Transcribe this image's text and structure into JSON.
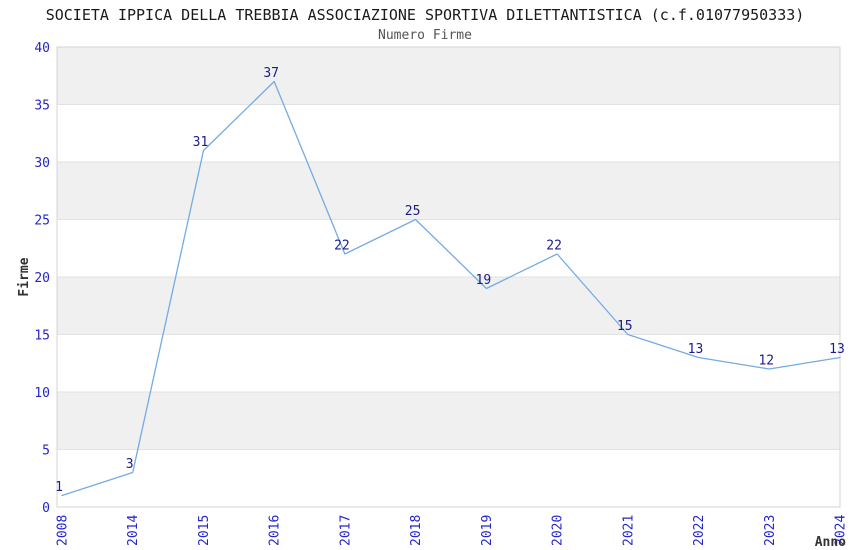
{
  "header": {
    "title": "SOCIETA IPPICA DELLA TREBBIA ASSOCIAZIONE SPORTIVA DILETTANTISTICA (c.f.01077950333)",
    "subtitle": "Numero Firme"
  },
  "chart_data": {
    "type": "line",
    "title": "SOCIETA IPPICA DELLA TREBBIA ASSOCIAZIONE SPORTIVA DILETTANTISTICA (c.f.01077950333)",
    "subtitle": "Numero Firme",
    "categories": [
      "2008",
      "2014",
      "2015",
      "2016",
      "2017",
      "2018",
      "2019",
      "2020",
      "2021",
      "2022",
      "2023",
      "2024"
    ],
    "series": [
      {
        "name": "Numero Firme",
        "values": [
          1,
          3,
          31,
          37,
          22,
          25,
          19,
          22,
          15,
          13,
          12,
          13
        ]
      }
    ],
    "xlabel": "Anno",
    "ylabel": "Firme",
    "ylim": [
      0,
      40
    ],
    "ytick_step": 5,
    "yticks": [
      0,
      5,
      10,
      15,
      20,
      25,
      30,
      35,
      40
    ],
    "data_labels_shown": true,
    "legend": "none",
    "grid": "horizontal-bands",
    "colors": {
      "line": "#74ABE2",
      "tick_label": "#2525CD",
      "data_label": "#1C1C8A",
      "band_fill": "#F0F0F0",
      "grid_line": "#E2E2E2",
      "plot_border": "#D5D5D5",
      "title": "#1A1A1A",
      "subtitle": "#555555",
      "axis_title": "#333333",
      "background": "#FFFFFF"
    }
  }
}
